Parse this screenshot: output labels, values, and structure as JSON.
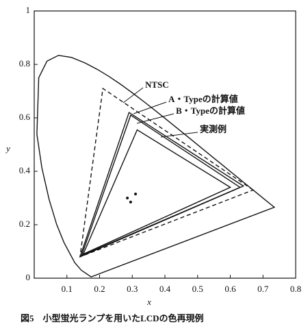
{
  "chart_data": {
    "type": "line",
    "caption": "図5　小型蛍光ランプを用いたLCDの色再現例",
    "x_label": "x",
    "y_label": "y",
    "xlim": [
      0,
      0.8
    ],
    "ylim": [
      0,
      1
    ],
    "xticks": [
      0.1,
      0.2,
      0.3,
      0.4,
      0.5,
      0.6,
      0.7,
      0.8
    ],
    "yticks": [
      0,
      0.2,
      0.4,
      0.6,
      0.8,
      1
    ],
    "series": [
      {
        "color": "#111111",
        "closed": true,
        "dashed": false,
        "x": [
          0.1741,
          0.144,
          0.1241,
          0.0913,
          0.0687,
          0.0454,
          0.0235,
          0.0082,
          0.0139,
          0.0389,
          0.0743,
          0.1142,
          0.1547,
          0.1929,
          0.2296,
          0.2658,
          0.3016,
          0.3373,
          0.3731,
          0.4087,
          0.4441,
          0.4788,
          0.5125,
          0.5448,
          0.5752,
          0.6029,
          0.627,
          0.6482,
          0.6658,
          0.6801,
          0.6915,
          0.7006,
          0.7347
        ],
        "values": [
          0.005,
          0.0297,
          0.0578,
          0.1327,
          0.2007,
          0.295,
          0.4127,
          0.5384,
          0.7502,
          0.812,
          0.8338,
          0.8262,
          0.8059,
          0.7816,
          0.7543,
          0.7243,
          0.6923,
          0.6589,
          0.6245,
          0.5896,
          0.5547,
          0.5202,
          0.4866,
          0.4544,
          0.4242,
          0.3965,
          0.3725,
          0.3514,
          0.334,
          0.3197,
          0.3083,
          0.2993,
          0.2653
        ]
      },
      {
        "name": "NTSC",
        "color": "#111111",
        "closed": true,
        "dashed": true,
        "x": [
          0.67,
          0.21,
          0.14
        ],
        "values": [
          0.33,
          0.71,
          0.08
        ]
      },
      {
        "name": "A・Typeの計算値",
        "color": "#111111",
        "closed": true,
        "dashed": false,
        "x": [
          0.64,
          0.29,
          0.14
        ],
        "values": [
          0.345,
          0.62,
          0.08
        ]
      },
      {
        "name": "B・Typeの計算値",
        "color": "#111111",
        "closed": true,
        "dashed": false,
        "x": [
          0.63,
          0.295,
          0.145
        ],
        "values": [
          0.34,
          0.61,
          0.085
        ]
      },
      {
        "name": "実測例",
        "color": "#111111",
        "closed": true,
        "dashed": false,
        "x": [
          0.6,
          0.315,
          0.15
        ],
        "values": [
          0.34,
          0.555,
          0.09
        ]
      },
      {
        "color": "#111111",
        "marker": true,
        "x": [
          0.285,
          0.295,
          0.31
        ],
        "values": [
          0.3,
          0.285,
          0.315
        ]
      }
    ]
  }
}
